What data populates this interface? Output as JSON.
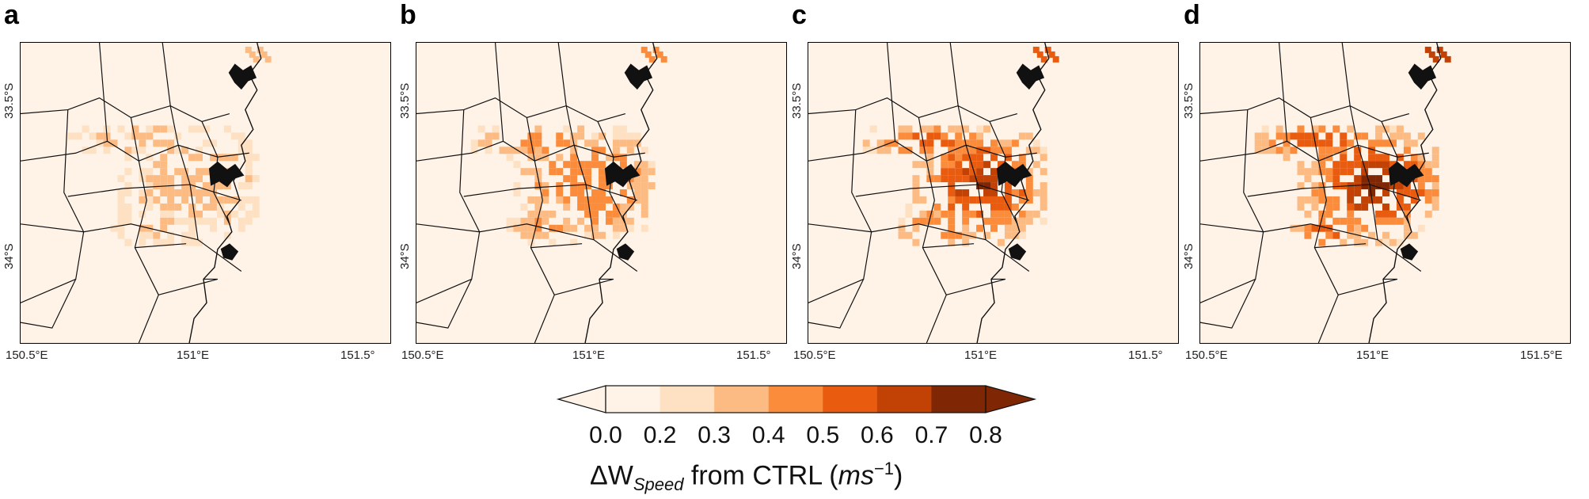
{
  "figure": {
    "panels": [
      {
        "letter": "a",
        "intensity": 0.25
      },
      {
        "letter": "b",
        "intensity": 0.45
      },
      {
        "letter": "c",
        "intensity": 0.62
      },
      {
        "letter": "d",
        "intensity": 0.7
      }
    ],
    "lat_labels": [
      "33.5°S",
      "34°S"
    ],
    "lon_labels_abc": [
      "150.5°E",
      "151°E",
      "151.5°"
    ],
    "lon_labels_d": [
      "150.5°E",
      "151°E",
      "151.5°E"
    ]
  },
  "colorbar": {
    "ticks": [
      "0.0",
      "0.2",
      "0.3",
      "0.4",
      "0.5",
      "0.6",
      "0.7",
      "0.8"
    ],
    "colors": [
      "#fff3e8",
      "#fee0c2",
      "#fdbb84",
      "#fb8c3c",
      "#e95c10",
      "#c24104",
      "#7f2704"
    ],
    "label_delta": "ΔW",
    "label_sub": "Speed",
    "label_from": " from CTRL (",
    "label_unit": "ms",
    "label_exp": "−1",
    "label_close": ")"
  }
}
